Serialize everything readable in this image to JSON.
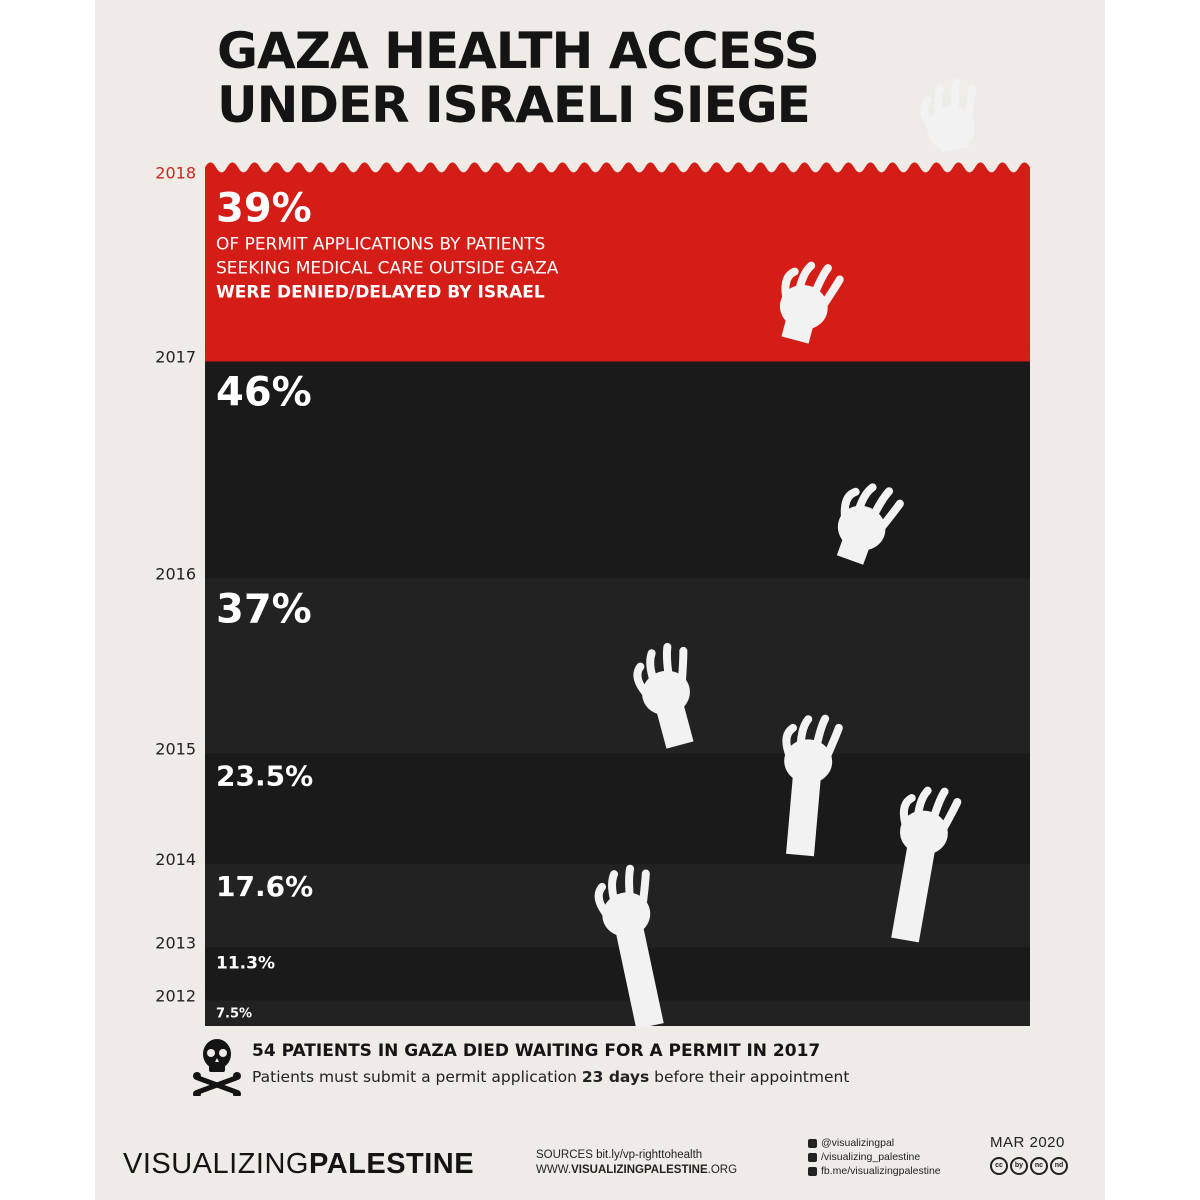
{
  "title": {
    "line1": "GAZA HEALTH ACCESS",
    "line2": "UNDER ISRAELI SIEGE"
  },
  "chart_data": {
    "type": "bar",
    "orientation": "stacked-bands",
    "categories": [
      "2018",
      "2017",
      "2016",
      "2015",
      "2014",
      "2013",
      "2012"
    ],
    "values": [
      39,
      46,
      37,
      23.5,
      17.6,
      11.3,
      7.5
    ],
    "labels": [
      "39%",
      "46%",
      "37%",
      "23.5%",
      "17.6%",
      "11.3%",
      "7.5%"
    ],
    "annotation": {
      "line1": "OF PERMIT APPLICATIONS BY PATIENTS",
      "line2": "SEEKING MEDICAL CARE OUTSIDE GAZA",
      "line3": "WERE DENIED/DELAYED BY ISRAEL"
    },
    "colors": {
      "highlight": "#d41d17",
      "dark": "#1b1a1b",
      "year_highlight": "#c8291f",
      "year": "#222222"
    }
  },
  "footer": {
    "headline": "54 PATIENTS IN GAZA DIED WAITING FOR A PERMIT IN 2017",
    "sub_before": "Patients must submit a permit application ",
    "sub_bold": "23 days",
    "sub_after": " before their appointment"
  },
  "branding": {
    "brand_light": "VISUALIZING",
    "brand_bold": "PALESTINE",
    "sources_label": "SOURCES bit.ly/vp-righttohealth",
    "site_prefix": "WWW.",
    "site_bold": "VISUALIZINGPALESTINE",
    "site_suffix": ".ORG",
    "social": [
      "@visualizingpal",
      "/visualizing_palestine",
      "fb.me/visualizingpalestine"
    ],
    "date": "MAR 2020",
    "license_icons": [
      "cc",
      "by",
      "nc",
      "nd"
    ]
  }
}
